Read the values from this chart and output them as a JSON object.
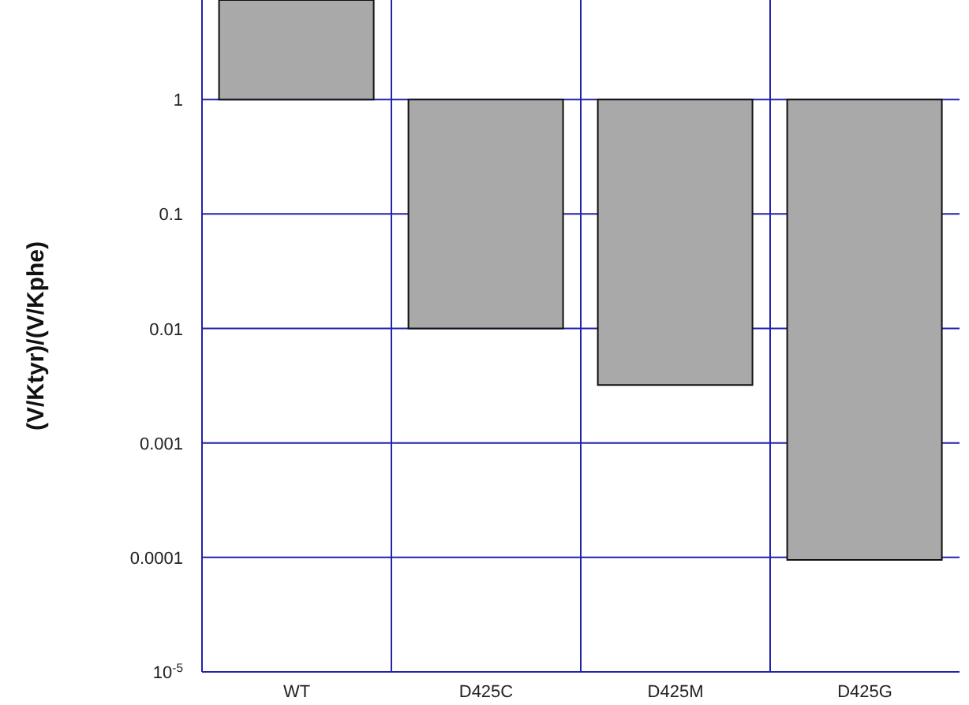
{
  "chart_data": {
    "type": "bar",
    "ylabel": "(V/Ktyr)/(V/Kphe)",
    "categories": [
      "WT",
      "D425C",
      "D425M",
      "D425G"
    ],
    "base": [
      1,
      1,
      1,
      1
    ],
    "values": [
      6.4,
      -0.99,
      -0.9968,
      -0.999905
    ],
    "color": "#a9a9a9",
    "log": true,
    "ylim": [
      1e-05,
      7.4
    ],
    "yticks": [
      1,
      0.1,
      0.01,
      0.001,
      0.0001,
      {
        "value": 1e-05,
        "label": "10$^{-5}$"
      }
    ],
    "grid": true
  }
}
